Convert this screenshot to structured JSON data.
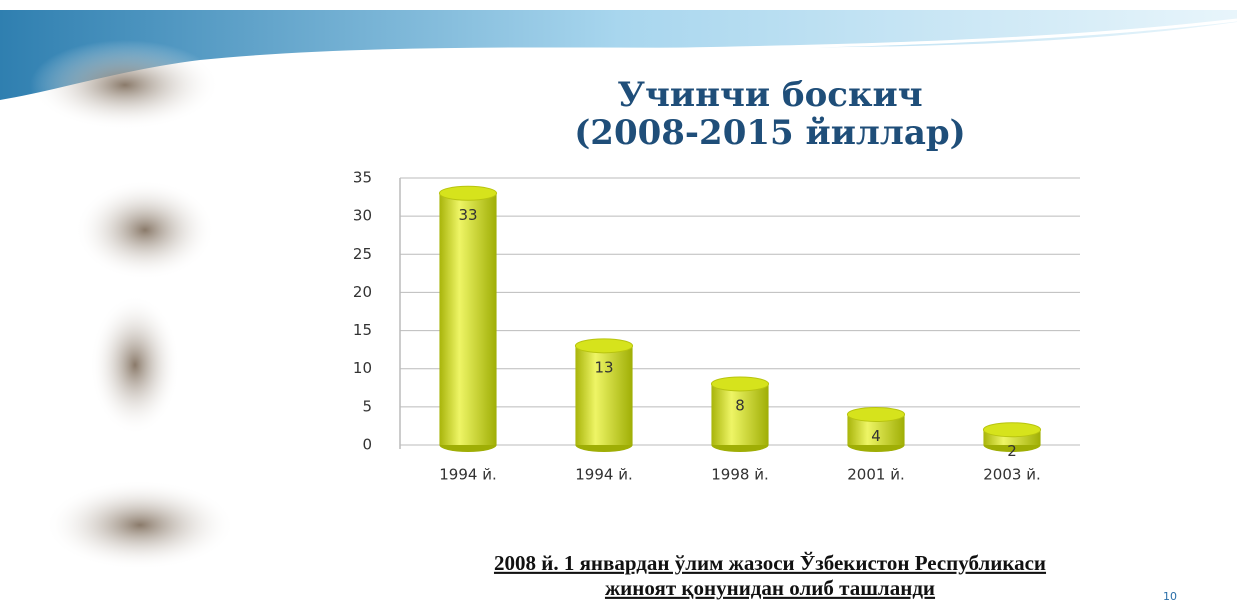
{
  "chart_data": {
    "type": "bar",
    "title": "Учинчи боскич",
    "subtitle": "(2008-2015 йиллар)",
    "categories": [
      "1994 й.",
      "1994 й.",
      "1998 й.",
      "2001 й.",
      "2003 й."
    ],
    "values": [
      33,
      13,
      8,
      4,
      2
    ],
    "color": "#d6e31c",
    "ylim": [
      0,
      35
    ],
    "yticks": [
      0,
      5,
      10,
      15,
      20,
      25,
      30,
      35
    ],
    "grid": true
  },
  "footer": {
    "lines": [
      "2008 й. 1 январдан ўлим жазоси Ўзбекистон Республикаси",
      "жиноят қонунидан олиб ташланди"
    ]
  },
  "slide_number": "10"
}
